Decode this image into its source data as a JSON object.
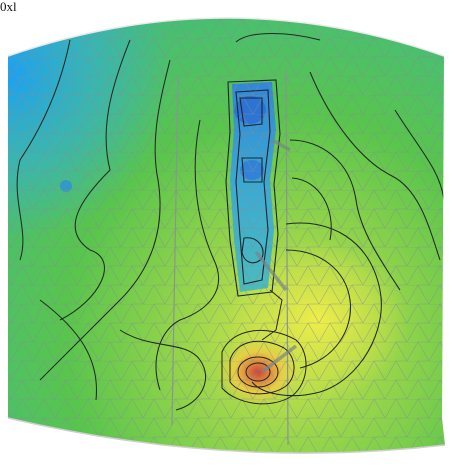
{
  "figure": {
    "label": "0xl"
  },
  "colors": {
    "field_blue": "#2aa9e6",
    "field_teal": "#3ec3a2",
    "field_green": "#50c24a",
    "field_yellow": "#e9e64a",
    "hot_orange": "#e8a042",
    "hot_red": "#d6533b",
    "mesh": "#7f8f8f",
    "contour": "#1e2a1e",
    "edge": "#f2f2f2"
  },
  "icons": {
    "surface": "contour-mesh-icon"
  }
}
